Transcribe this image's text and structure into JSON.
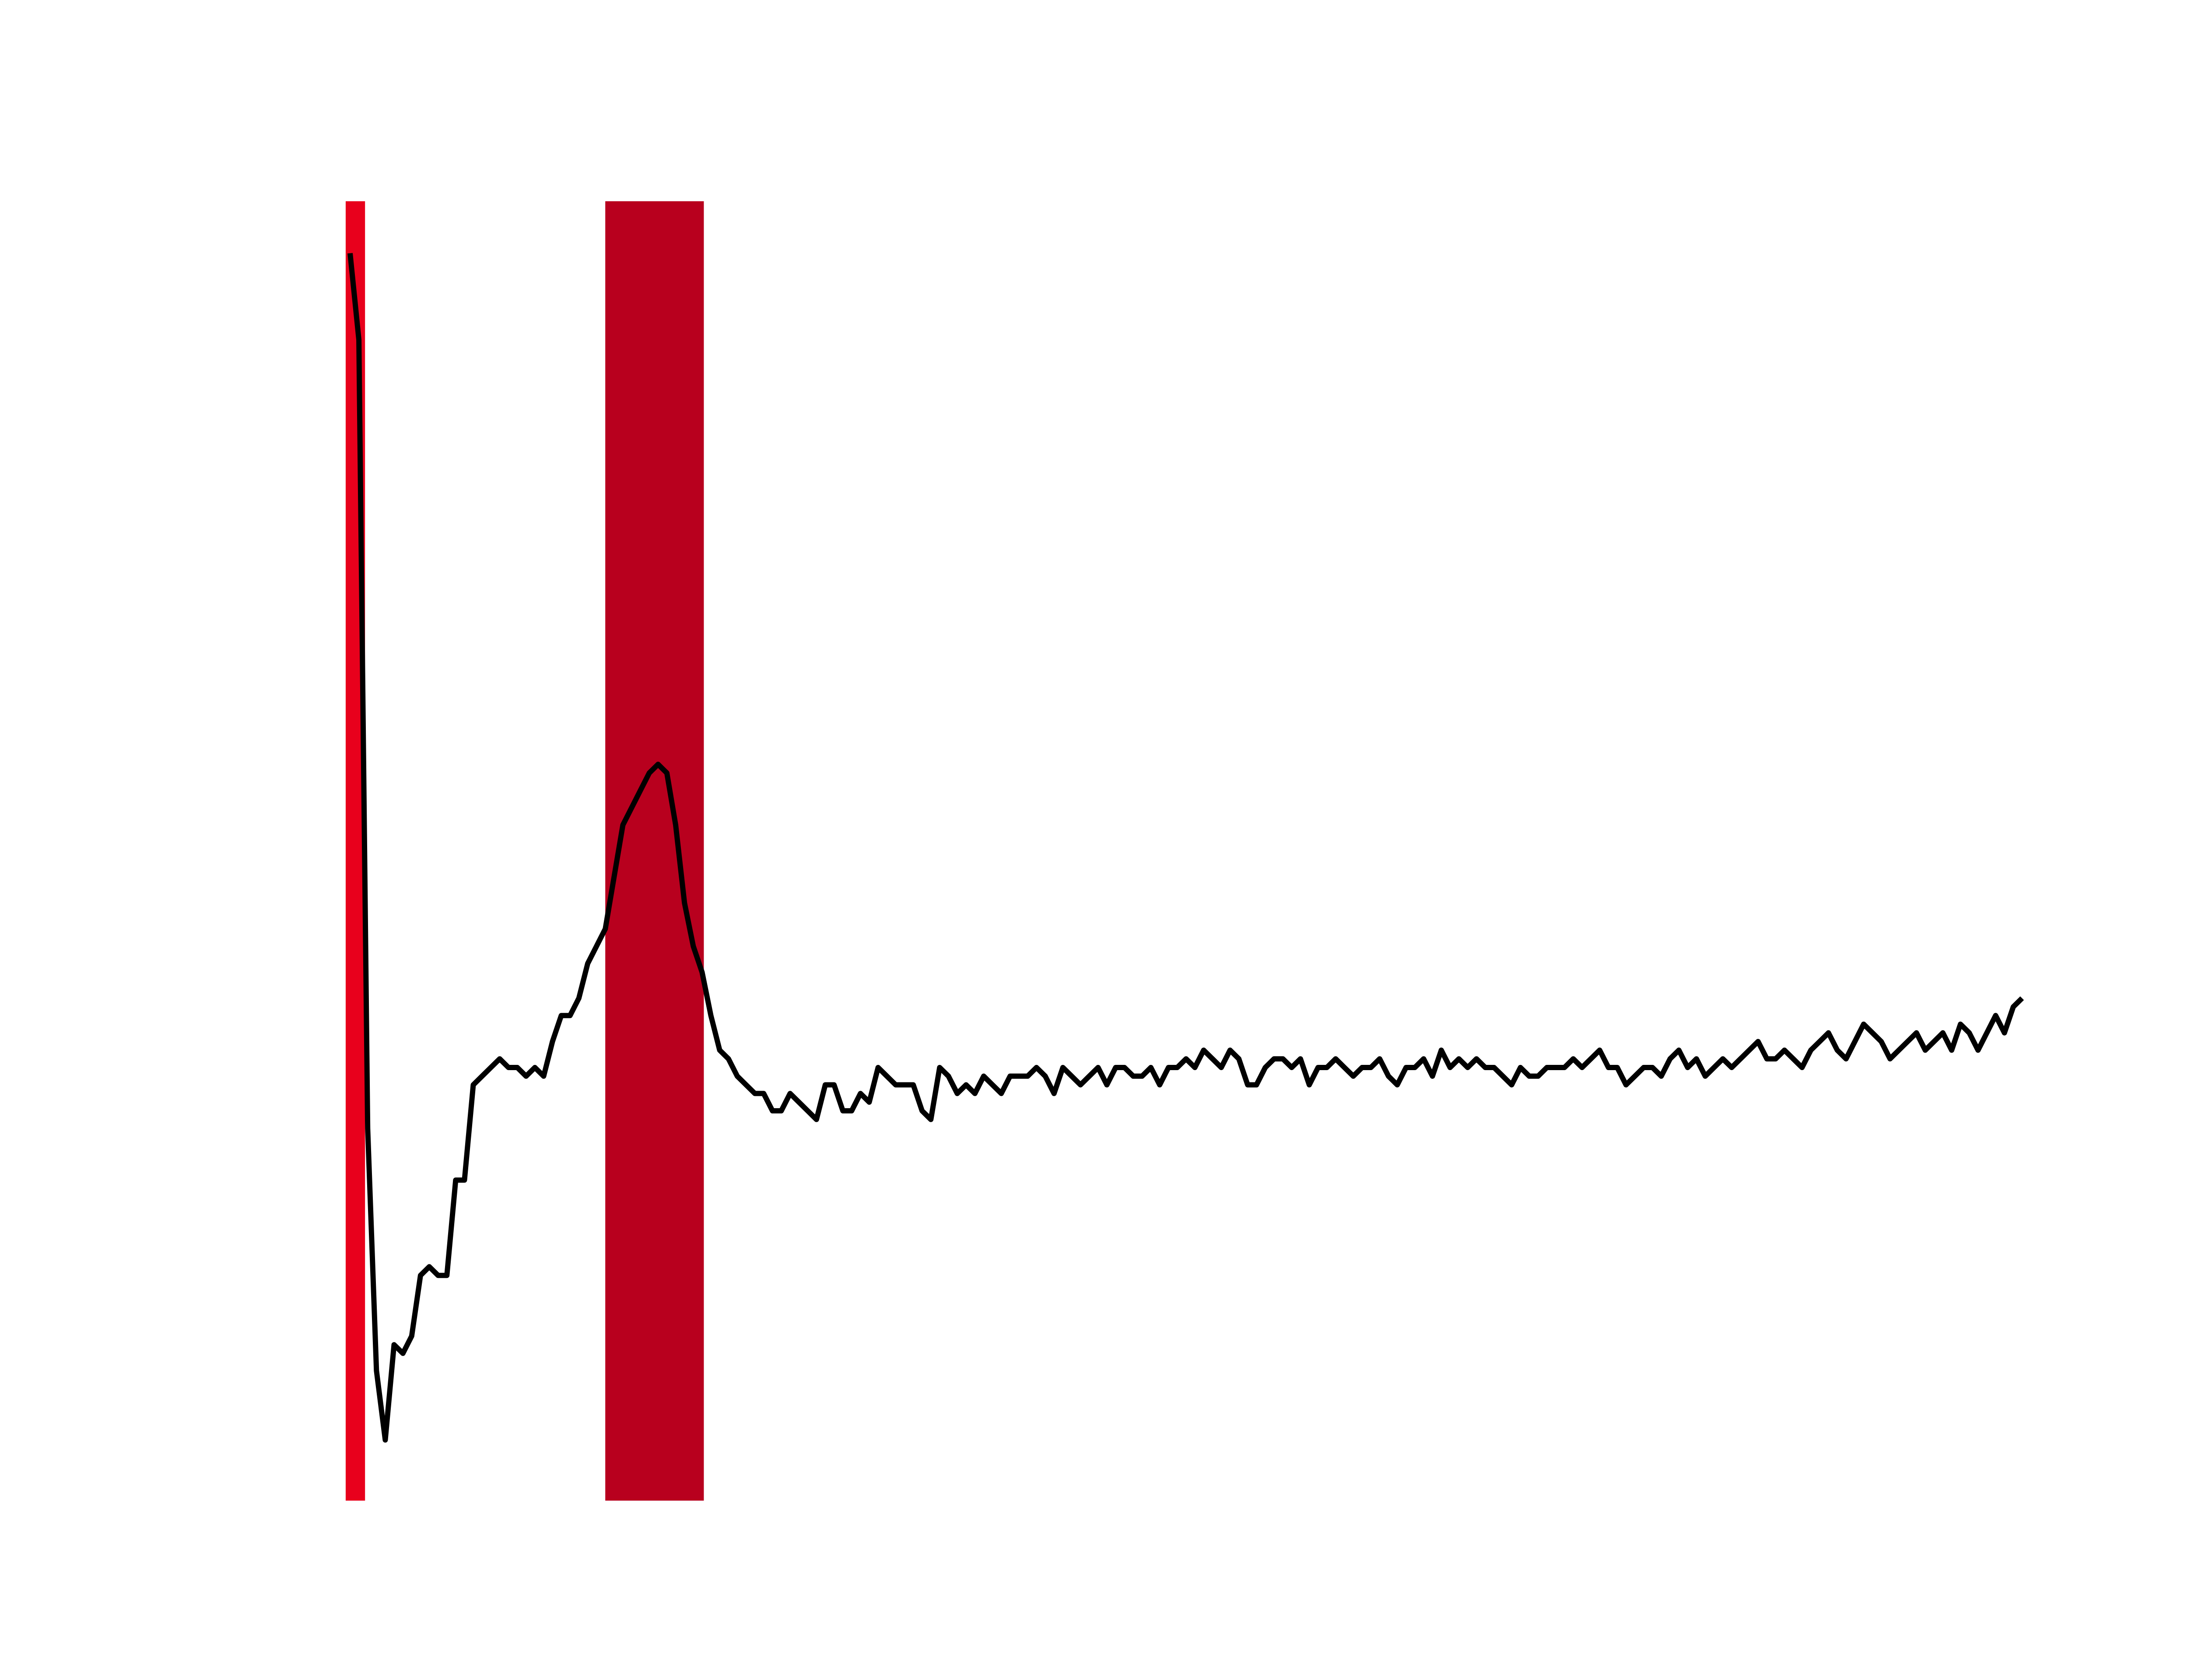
{
  "chart_data": {
    "type": "line",
    "title": "",
    "xlabel": "",
    "ylabel": "",
    "axes_visible": false,
    "grid": false,
    "legend": "none",
    "xlim": [
      0,
      183
    ],
    "ylim": [
      -0.3,
      1.2
    ],
    "line_color": "#000000",
    "highlight_regions": [
      {
        "x_start": -0.5,
        "x_end": 1.7,
        "color": "#e8001c"
      },
      {
        "x_start": 29.0,
        "x_end": 40.2,
        "color": "#b8001e"
      }
    ],
    "series": [
      {
        "values": [
          1.14,
          1.04,
          0.13,
          -0.15,
          -0.23,
          -0.12,
          -0.13,
          -0.11,
          -0.04,
          -0.03,
          -0.04,
          -0.04,
          0.07,
          0.07,
          0.18,
          0.19,
          0.2,
          0.21,
          0.2,
          0.2,
          0.19,
          0.2,
          0.19,
          0.23,
          0.26,
          0.26,
          0.28,
          0.32,
          0.34,
          0.36,
          0.42,
          0.48,
          0.5,
          0.52,
          0.54,
          0.55,
          0.54,
          0.48,
          0.39,
          0.34,
          0.31,
          0.26,
          0.22,
          0.21,
          0.19,
          0.18,
          0.17,
          0.17,
          0.15,
          0.15,
          0.17,
          0.16,
          0.15,
          0.14,
          0.18,
          0.18,
          0.15,
          0.15,
          0.17,
          0.16,
          0.2,
          0.19,
          0.18,
          0.18,
          0.18,
          0.15,
          0.14,
          0.2,
          0.19,
          0.17,
          0.18,
          0.17,
          0.19,
          0.18,
          0.17,
          0.19,
          0.19,
          0.19,
          0.2,
          0.19,
          0.17,
          0.2,
          0.19,
          0.18,
          0.19,
          0.2,
          0.18,
          0.2,
          0.2,
          0.19,
          0.19,
          0.2,
          0.18,
          0.2,
          0.2,
          0.21,
          0.2,
          0.22,
          0.21,
          0.2,
          0.22,
          0.21,
          0.18,
          0.18,
          0.2,
          0.21,
          0.21,
          0.2,
          0.21,
          0.18,
          0.2,
          0.2,
          0.21,
          0.2,
          0.19,
          0.2,
          0.2,
          0.21,
          0.19,
          0.18,
          0.2,
          0.2,
          0.21,
          0.19,
          0.22,
          0.2,
          0.21,
          0.2,
          0.21,
          0.2,
          0.2,
          0.19,
          0.18,
          0.2,
          0.19,
          0.19,
          0.2,
          0.2,
          0.2,
          0.21,
          0.2,
          0.21,
          0.22,
          0.2,
          0.2,
          0.18,
          0.19,
          0.2,
          0.2,
          0.19,
          0.21,
          0.22,
          0.2,
          0.21,
          0.19,
          0.2,
          0.21,
          0.2,
          0.21,
          0.22,
          0.23,
          0.21,
          0.21,
          0.22,
          0.21,
          0.2,
          0.22,
          0.23,
          0.24,
          0.22,
          0.21,
          0.23,
          0.25,
          0.24,
          0.23,
          0.21,
          0.22,
          0.23,
          0.24,
          0.22,
          0.23,
          0.24,
          0.22,
          0.25,
          0.24,
          0.22,
          0.24,
          0.26,
          0.24,
          0.27,
          0.28
        ]
      }
    ]
  }
}
